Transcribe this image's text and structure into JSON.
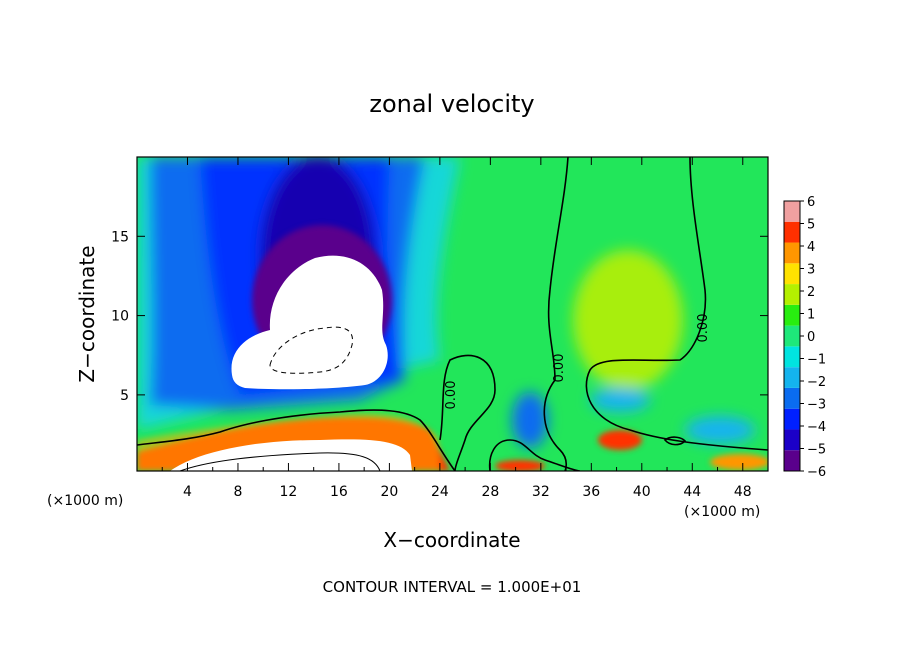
{
  "chart_data": {
    "type": "heatmap",
    "title": "zonal velocity",
    "xlabel": "X−coordinate",
    "ylabel": "Z−coordinate",
    "x_unit_left": "(×1000 m)",
    "x_unit_right": "(×1000 m)",
    "footer": "CONTOUR INTERVAL = 1.000E+01",
    "xlim": [
      0,
      50
    ],
    "ylim": [
      0.2,
      20
    ],
    "x_ticks": [
      4,
      8,
      12,
      16,
      20,
      24,
      28,
      32,
      36,
      40,
      44,
      48
    ],
    "y_ticks": [
      5,
      10,
      15
    ],
    "colorbar": {
      "range": [
        -6,
        6
      ],
      "levels": [
        -6,
        -5,
        -4,
        -3,
        -2,
        -1,
        0,
        1,
        2,
        3,
        4,
        5,
        6
      ],
      "colors": [
        "#5a008c",
        "#1b00c8",
        "#0020ff",
        "#0a6cf0",
        "#14b4ee",
        "#00e4e0",
        "#1ee87a",
        "#28ee10",
        "#b4f000",
        "#ffe200",
        "#ff9600",
        "#ff3000",
        "#f0a0a0"
      ]
    },
    "contour_labels": [
      "0.00",
      "0.00",
      "0.00"
    ]
  }
}
